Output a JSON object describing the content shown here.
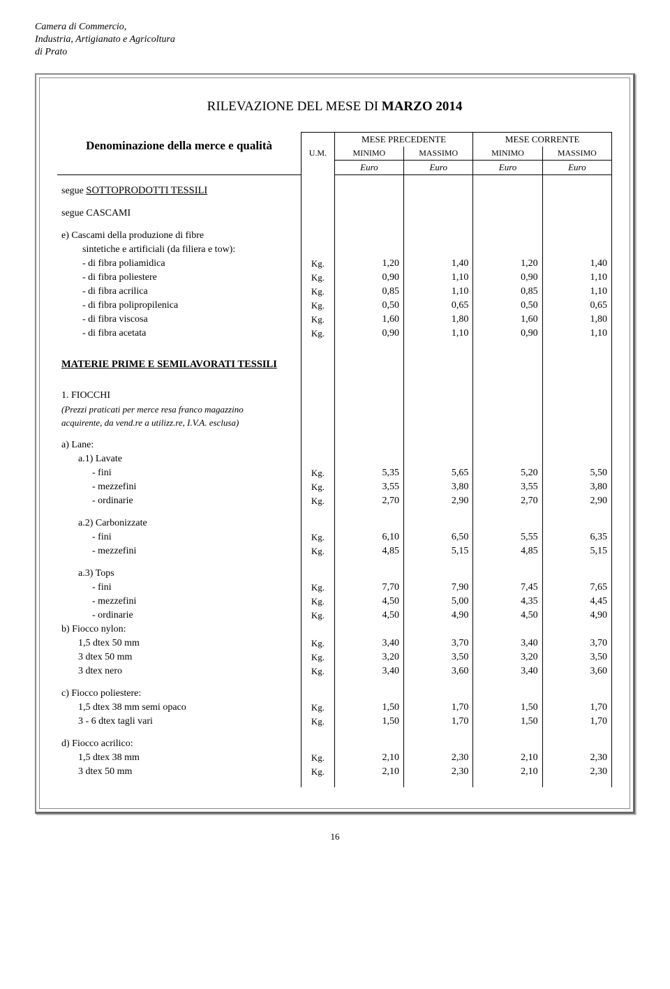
{
  "org": {
    "line1": "Camera di Commercio,",
    "line2": "Industria, Artigianato e Agricoltura",
    "line3": "di Prato"
  },
  "title_pre": "RILEVAZIONE DEL MESE DI ",
  "title_bold": "MARZO 2014",
  "denomination": "Denominazione della merce e qualità",
  "um": "U.M.",
  "hdr_prev": "MESE PRECEDENTE",
  "hdr_curr": "MESE CORRENTE",
  "hdr_min": "MINIMO",
  "hdr_max": "MASSIMO",
  "euro": "Euro",
  "kg": "Kg.",
  "sect_sotto": "SOTTOPRODOTTI TESSILI",
  "segue1": "segue ",
  "segue_cascami": "segue CASCAMI",
  "cascami_e": "e) Cascami della produzione di fibre",
  "cascami_e2": "sintetiche e artificiali (da filiera e tow):",
  "rows_e": [
    {
      "label": "- di fibra poliamidica",
      "v": [
        "1,20",
        "1,40",
        "1,20",
        "1,40"
      ]
    },
    {
      "label": "- di fibra poliestere",
      "v": [
        "0,90",
        "1,10",
        "0,90",
        "1,10"
      ]
    },
    {
      "label": "- di fibra acrilica",
      "v": [
        "0,85",
        "1,10",
        "0,85",
        "1,10"
      ]
    },
    {
      "label": "- di fibra polipropilenica",
      "v": [
        "0,50",
        "0,65",
        "0,50",
        "0,65"
      ]
    },
    {
      "label": "- di fibra viscosa",
      "v": [
        "1,60",
        "1,80",
        "1,60",
        "1,80"
      ]
    },
    {
      "label": "- di fibra acetata",
      "v": [
        "0,90",
        "1,10",
        "0,90",
        "1,10"
      ]
    }
  ],
  "sect_materie": "MATERIE PRIME E SEMILAVORATI TESSILI",
  "fiocchi_title": "1. FIOCCHI",
  "fiocchi_note1": "(Prezzi praticati per merce resa franco magazzino",
  "fiocchi_note2": "acquirente, da vend.re a utilizz.re, I.V.A. esclusa)",
  "a_lane": "a) Lane:",
  "a1": "a.1) Lavate",
  "a2": "a.2) Carbonizzate",
  "a3": "a.3) Tops",
  "fini": "- fini",
  "mezzefini": "- mezzefini",
  "ordinarie": "- ordinarie",
  "a1_rows": [
    {
      "label": "- fini",
      "v": [
        "5,35",
        "5,65",
        "5,20",
        "5,50"
      ]
    },
    {
      "label": "- mezzefini",
      "v": [
        "3,55",
        "3,80",
        "3,55",
        "3,80"
      ]
    },
    {
      "label": "- ordinarie",
      "v": [
        "2,70",
        "2,90",
        "2,70",
        "2,90"
      ]
    }
  ],
  "a2_rows": [
    {
      "label": "- fini",
      "v": [
        "6,10",
        "6,50",
        "5,55",
        "6,35"
      ]
    },
    {
      "label": "- mezzefini",
      "v": [
        "4,85",
        "5,15",
        "4,85",
        "5,15"
      ]
    }
  ],
  "a3_rows": [
    {
      "label": "- fini",
      "v": [
        "7,70",
        "7,90",
        "7,45",
        "7,65"
      ]
    },
    {
      "label": "- mezzefini",
      "v": [
        "4,50",
        "5,00",
        "4,35",
        "4,45"
      ]
    },
    {
      "label": "- ordinarie",
      "v": [
        "4,50",
        "4,90",
        "4,50",
        "4,90"
      ]
    }
  ],
  "b_title": "b) Fiocco nylon:",
  "b_rows": [
    {
      "label": "1,5 dtex 50 mm",
      "v": [
        "3,40",
        "3,70",
        "3,40",
        "3,70"
      ]
    },
    {
      "label": "3 dtex 50 mm",
      "v": [
        "3,20",
        "3,50",
        "3,20",
        "3,50"
      ]
    },
    {
      "label": "3 dtex nero",
      "v": [
        "3,40",
        "3,60",
        "3,40",
        "3,60"
      ]
    }
  ],
  "c_title": "c) Fiocco poliestere:",
  "c_rows": [
    {
      "label": "1,5 dtex 38 mm semi opaco",
      "v": [
        "1,50",
        "1,70",
        "1,50",
        "1,70"
      ]
    },
    {
      "label": "3 - 6 dtex tagli vari",
      "v": [
        "1,50",
        "1,70",
        "1,50",
        "1,70"
      ]
    }
  ],
  "d_title": "d) Fiocco acrilico:",
  "d_rows": [
    {
      "label": "1,5 dtex 38 mm",
      "v": [
        "2,10",
        "2,30",
        "2,10",
        "2,30"
      ]
    },
    {
      "label": "3 dtex 50 mm",
      "v": [
        "2,10",
        "2,30",
        "2,10",
        "2,30"
      ]
    }
  ],
  "page": "16"
}
